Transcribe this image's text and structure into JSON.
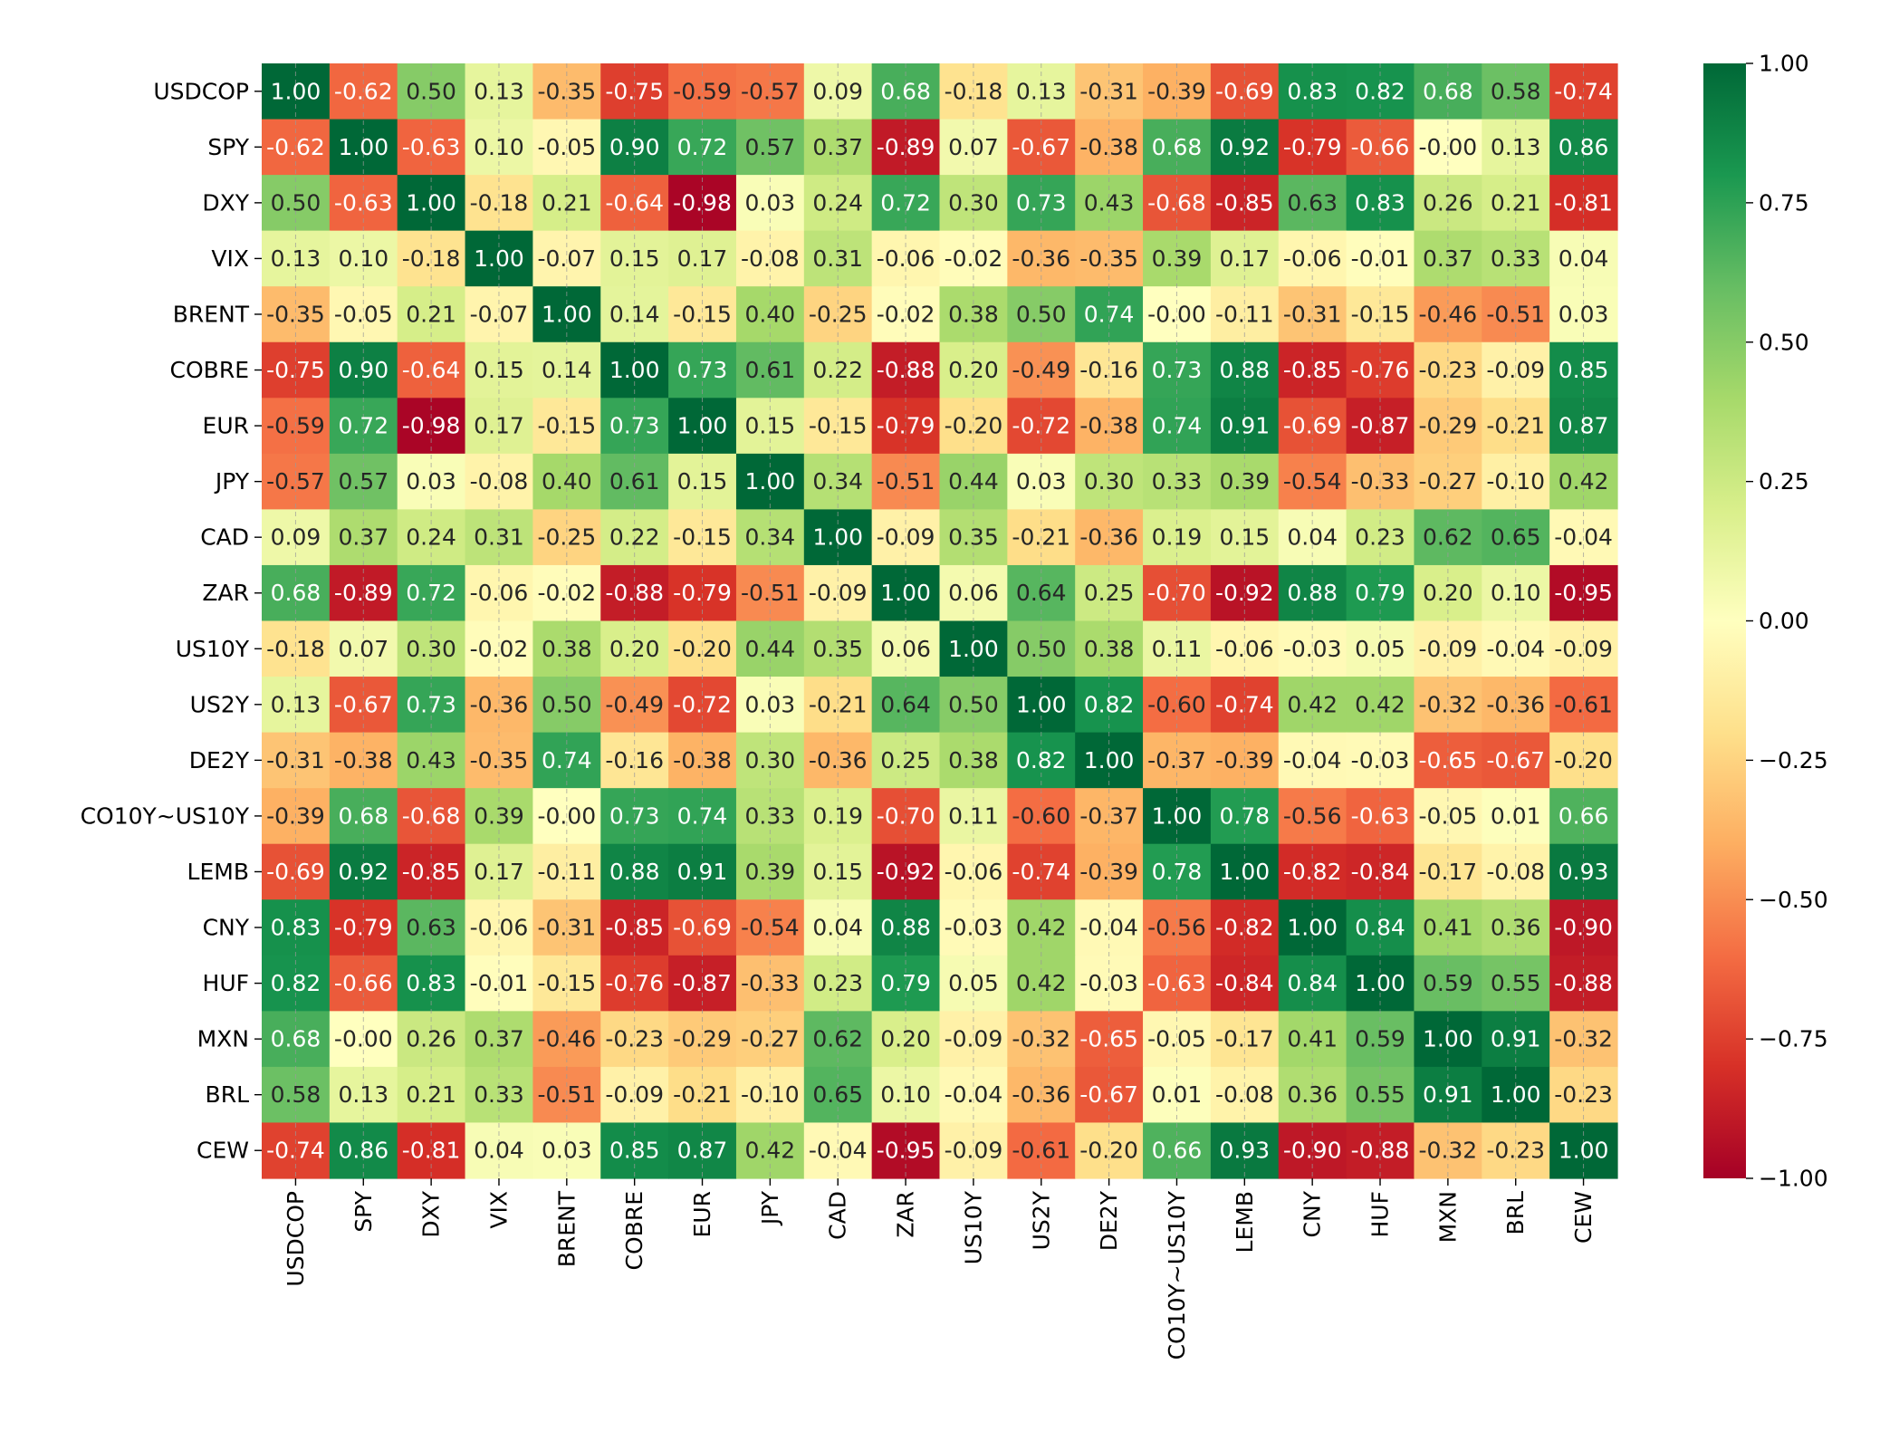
{
  "chart_data": {
    "type": "heatmap",
    "title": "",
    "xlabel": "",
    "ylabel": "",
    "labels": [
      "USDCOP",
      "SPY",
      "DXY",
      "VIX",
      "BRENT",
      "COBRE",
      "EUR",
      "JPY",
      "CAD",
      "ZAR",
      "US10Y",
      "US2Y",
      "DE2Y",
      "CO10Y~US10Y",
      "LEMB",
      "CNY",
      "HUF",
      "MXN",
      "BRL",
      "CEW"
    ],
    "matrix": [
      [
        1.0,
        -0.62,
        0.5,
        0.13,
        -0.35,
        -0.75,
        -0.59,
        -0.57,
        0.09,
        0.68,
        -0.18,
        0.13,
        -0.31,
        -0.39,
        -0.69,
        0.83,
        0.82,
        0.68,
        0.58,
        -0.74
      ],
      [
        -0.62,
        1.0,
        -0.63,
        0.1,
        -0.05,
        0.9,
        0.72,
        0.57,
        0.37,
        -0.89,
        0.07,
        -0.67,
        -0.38,
        0.68,
        0.92,
        -0.79,
        -0.66,
        -0.0,
        0.13,
        0.86
      ],
      [
        0.5,
        -0.63,
        1.0,
        -0.18,
        0.21,
        -0.64,
        -0.98,
        0.03,
        0.24,
        0.72,
        0.3,
        0.73,
        0.43,
        -0.68,
        -0.85,
        0.63,
        0.83,
        0.26,
        0.21,
        -0.81
      ],
      [
        0.13,
        0.1,
        -0.18,
        1.0,
        -0.07,
        0.15,
        0.17,
        -0.08,
        0.31,
        -0.06,
        -0.02,
        -0.36,
        -0.35,
        0.39,
        0.17,
        -0.06,
        -0.01,
        0.37,
        0.33,
        0.04
      ],
      [
        -0.35,
        -0.05,
        0.21,
        -0.07,
        1.0,
        0.14,
        -0.15,
        0.4,
        -0.25,
        -0.02,
        0.38,
        0.5,
        0.74,
        -0.0,
        -0.11,
        -0.31,
        -0.15,
        -0.46,
        -0.51,
        0.03
      ],
      [
        -0.75,
        0.9,
        -0.64,
        0.15,
        0.14,
        1.0,
        0.73,
        0.61,
        0.22,
        -0.88,
        0.2,
        -0.49,
        -0.16,
        0.73,
        0.88,
        -0.85,
        -0.76,
        -0.23,
        -0.09,
        0.85
      ],
      [
        -0.59,
        0.72,
        -0.98,
        0.17,
        -0.15,
        0.73,
        1.0,
        0.15,
        -0.15,
        -0.79,
        -0.2,
        -0.72,
        -0.38,
        0.74,
        0.91,
        -0.69,
        -0.87,
        -0.29,
        -0.21,
        0.87
      ],
      [
        -0.57,
        0.57,
        0.03,
        -0.08,
        0.4,
        0.61,
        0.15,
        1.0,
        0.34,
        -0.51,
        0.44,
        0.03,
        0.3,
        0.33,
        0.39,
        -0.54,
        -0.33,
        -0.27,
        -0.1,
        0.42
      ],
      [
        0.09,
        0.37,
        0.24,
        0.31,
        -0.25,
        0.22,
        -0.15,
        0.34,
        1.0,
        -0.09,
        0.35,
        -0.21,
        -0.36,
        0.19,
        0.15,
        0.04,
        0.23,
        0.62,
        0.65,
        -0.04
      ],
      [
        0.68,
        -0.89,
        0.72,
        -0.06,
        -0.02,
        -0.88,
        -0.79,
        -0.51,
        -0.09,
        1.0,
        0.06,
        0.64,
        0.25,
        -0.7,
        -0.92,
        0.88,
        0.79,
        0.2,
        0.1,
        -0.95
      ],
      [
        -0.18,
        0.07,
        0.3,
        -0.02,
        0.38,
        0.2,
        -0.2,
        0.44,
        0.35,
        0.06,
        1.0,
        0.5,
        0.38,
        0.11,
        -0.06,
        -0.03,
        0.05,
        -0.09,
        -0.04,
        -0.09
      ],
      [
        0.13,
        -0.67,
        0.73,
        -0.36,
        0.5,
        -0.49,
        -0.72,
        0.03,
        -0.21,
        0.64,
        0.5,
        1.0,
        0.82,
        -0.6,
        -0.74,
        0.42,
        0.42,
        -0.32,
        -0.36,
        -0.61
      ],
      [
        -0.31,
        -0.38,
        0.43,
        -0.35,
        0.74,
        -0.16,
        -0.38,
        0.3,
        -0.36,
        0.25,
        0.38,
        0.82,
        1.0,
        -0.37,
        -0.39,
        -0.04,
        -0.03,
        -0.65,
        -0.67,
        -0.2
      ],
      [
        -0.39,
        0.68,
        -0.68,
        0.39,
        -0.0,
        0.73,
        0.74,
        0.33,
        0.19,
        -0.7,
        0.11,
        -0.6,
        -0.37,
        1.0,
        0.78,
        -0.56,
        -0.63,
        -0.05,
        0.01,
        0.66
      ],
      [
        -0.69,
        0.92,
        -0.85,
        0.17,
        -0.11,
        0.88,
        0.91,
        0.39,
        0.15,
        -0.92,
        -0.06,
        -0.74,
        -0.39,
        0.78,
        1.0,
        -0.82,
        -0.84,
        -0.17,
        -0.08,
        0.93
      ],
      [
        0.83,
        -0.79,
        0.63,
        -0.06,
        -0.31,
        -0.85,
        -0.69,
        -0.54,
        0.04,
        0.88,
        -0.03,
        0.42,
        -0.04,
        -0.56,
        -0.82,
        1.0,
        0.84,
        0.41,
        0.36,
        -0.9
      ],
      [
        0.82,
        -0.66,
        0.83,
        -0.01,
        -0.15,
        -0.76,
        -0.87,
        -0.33,
        0.23,
        0.79,
        0.05,
        0.42,
        -0.03,
        -0.63,
        -0.84,
        0.84,
        1.0,
        0.59,
        0.55,
        -0.88
      ],
      [
        0.68,
        -0.0,
        0.26,
        0.37,
        -0.46,
        -0.23,
        -0.29,
        -0.27,
        0.62,
        0.2,
        -0.09,
        -0.32,
        -0.65,
        -0.05,
        -0.17,
        0.41,
        0.59,
        1.0,
        0.91,
        -0.32
      ],
      [
        0.58,
        0.13,
        0.21,
        0.33,
        -0.51,
        -0.09,
        -0.21,
        -0.1,
        0.65,
        0.1,
        -0.04,
        -0.36,
        -0.67,
        0.01,
        -0.08,
        0.36,
        0.55,
        0.91,
        1.0,
        -0.23
      ],
      [
        -0.74,
        0.86,
        -0.81,
        0.04,
        0.03,
        0.85,
        0.87,
        0.42,
        -0.04,
        -0.95,
        -0.09,
        -0.61,
        -0.2,
        0.66,
        0.93,
        -0.9,
        -0.88,
        -0.32,
        -0.23,
        1.0
      ]
    ],
    "colormap": "RdYlGn",
    "color_range": [
      -1.0,
      1.0
    ],
    "colorbar_ticks": [
      "1.00",
      "0.75",
      "0.50",
      "0.25",
      "0.00",
      "−0.25",
      "−0.50",
      "−0.75",
      "−1.00"
    ],
    "annotations": "two-decimal values in each cell",
    "grid": "dashed vertical lines through cell centers",
    "legend": "colorbar on the right"
  }
}
